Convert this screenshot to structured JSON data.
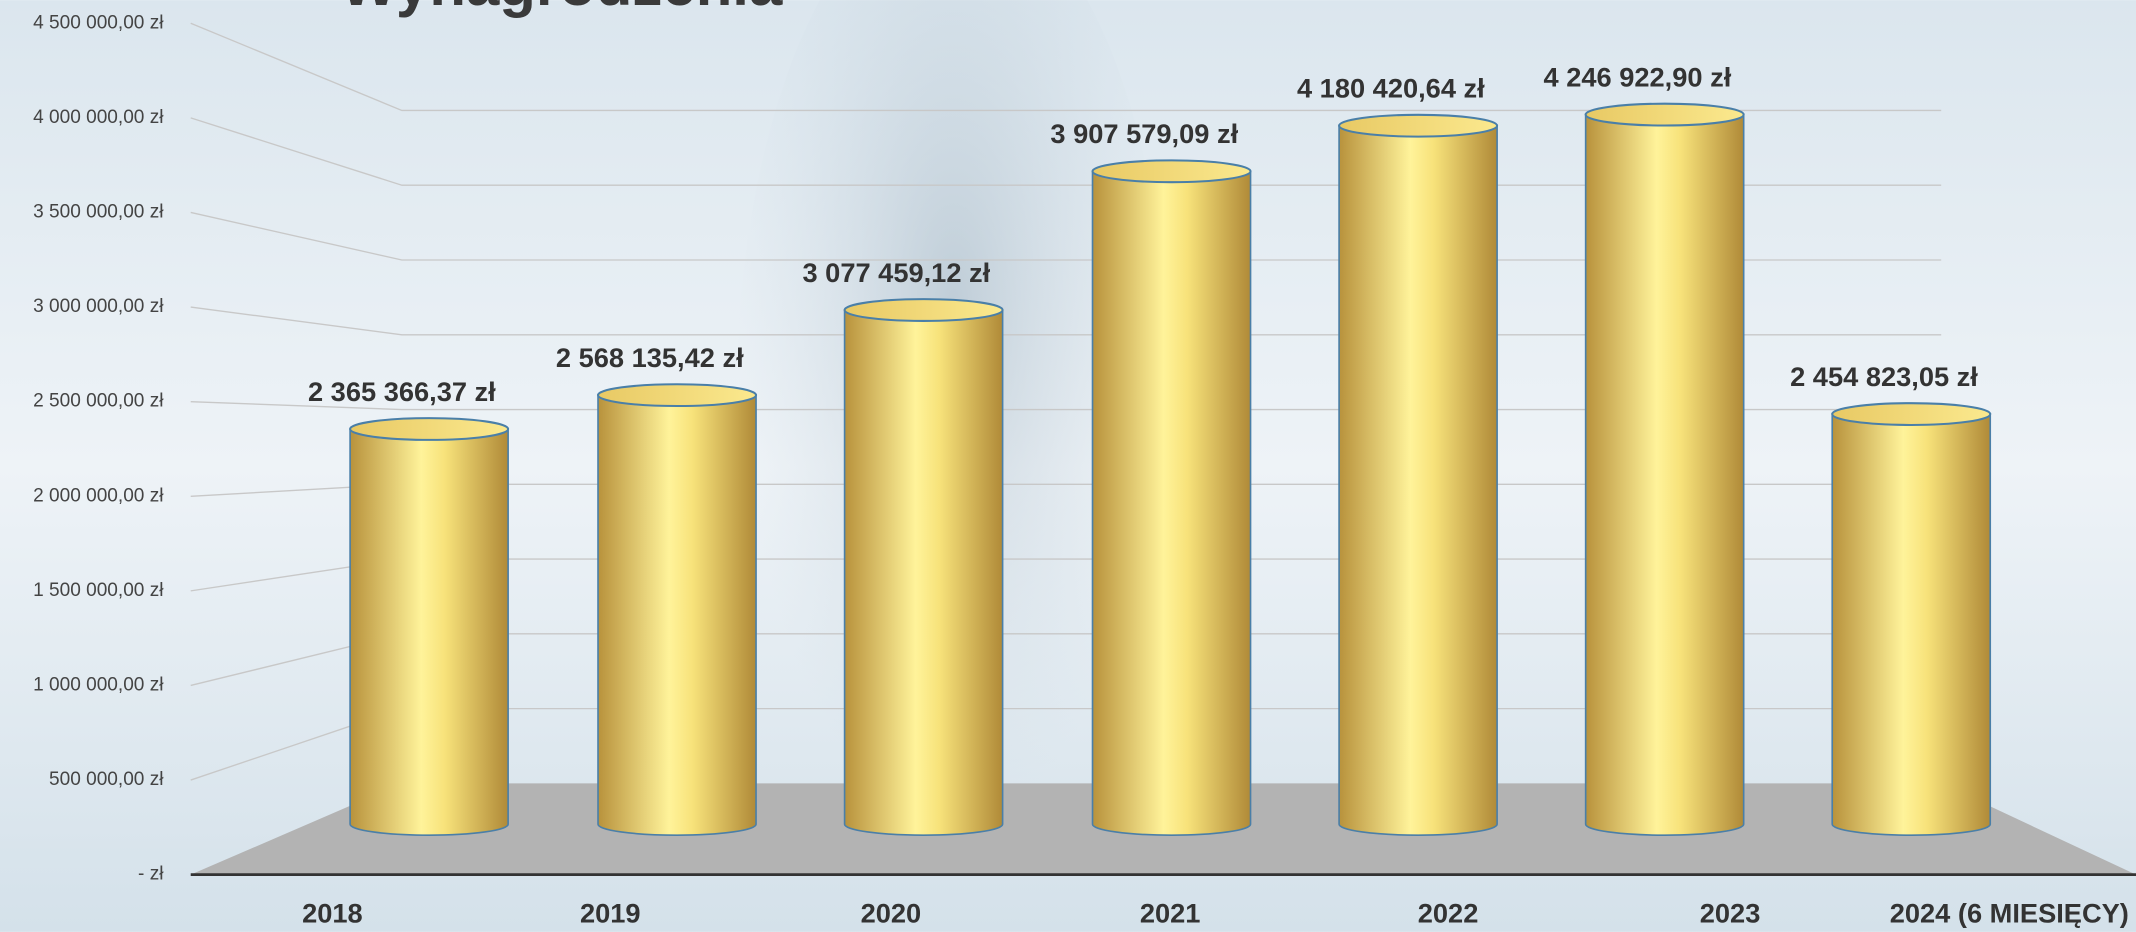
{
  "chart_data": {
    "type": "bar",
    "title": "Wynagrodzenia",
    "categories": [
      "2018",
      "2019",
      "2020",
      "2021",
      "2022",
      "2023",
      "2024 (6 MIESIĘCY)"
    ],
    "values": [
      2365366.37,
      2568135.42,
      3077459.12,
      3907579.09,
      4180420.64,
      4246922.9,
      2454823.05
    ],
    "value_labels": [
      "2 365 366,37 zł",
      "2 568 135,42 zł",
      "3 077 459,12 zł",
      "3 907 579,09 zł",
      "4 180 420,64 zł",
      "4 246 922,90 zł",
      "2 454 823,05 zł"
    ],
    "color": "#f2d46a",
    "ylim": [
      0,
      4500000
    ],
    "yticks": [
      {
        "value": 0,
        "label": "-  zł"
      },
      {
        "value": 500000,
        "label": "500 000,00 zł"
      },
      {
        "value": 1000000,
        "label": "1 000 000,00 zł"
      },
      {
        "value": 1500000,
        "label": "1 500 000,00 zł"
      },
      {
        "value": 2000000,
        "label": "2 000 000,00 zł"
      },
      {
        "value": 2500000,
        "label": "2 500 000,00 zł"
      },
      {
        "value": 3000000,
        "label": "3 000 000,00 zł"
      },
      {
        "value": 3500000,
        "label": "3 500 000,00 zł"
      },
      {
        "value": 4000000,
        "label": "4 000 000,00 zł"
      },
      {
        "value": 4500000,
        "label": "4 500 000,00 zł"
      }
    ],
    "grid": true
  }
}
